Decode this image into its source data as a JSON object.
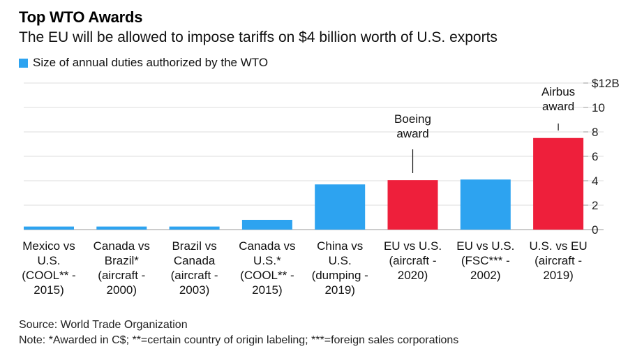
{
  "header": {
    "title": "Top WTO Awards",
    "subtitle": "The EU will be allowed to impose tariffs on $4 billion worth of U.S. exports"
  },
  "legend": {
    "label": "Size of annual duties authorized by the WTO",
    "color": "#2da3f0"
  },
  "footer": {
    "source": "Source: World Trade Organization",
    "note": "Note: *Awarded in C$; **=certain country of origin labeling; ***=foreign sales corporations"
  },
  "chart_data": {
    "type": "bar",
    "categories": [
      [
        "Mexico vs",
        "U.S.",
        "(COOL** -",
        "2015)"
      ],
      [
        "Canada vs",
        "Brazil*",
        "(aircraft -",
        "2000)"
      ],
      [
        "Brazil vs",
        "Canada",
        "(aircraft -",
        "2003)"
      ],
      [
        "Canada vs",
        "U.S.*",
        "(COOL** -",
        "2015)"
      ],
      [
        "China vs",
        "U.S.",
        "(dumping -",
        "2019)"
      ],
      [
        "EU vs U.S.",
        "(aircraft -",
        "2020)"
      ],
      [
        "EU vs U.S.",
        "(FSC*** -",
        "2002)"
      ],
      [
        "U.S. vs EU",
        "(aircraft -",
        "2019)"
      ]
    ],
    "values": [
      0.25,
      0.25,
      0.25,
      0.8,
      3.7,
      4.05,
      4.1,
      7.5
    ],
    "bar_colors": [
      "#2da3f0",
      "#2da3f0",
      "#2da3f0",
      "#2da3f0",
      "#2da3f0",
      "#ee1f3b",
      "#2da3f0",
      "#ee1f3b"
    ],
    "ylim": [
      0,
      12
    ],
    "yticks": [
      0,
      2,
      4,
      6,
      8,
      10,
      12
    ],
    "ytick_labels": [
      "0",
      "2",
      "4",
      "6",
      "8",
      "10",
      "$12B"
    ],
    "y_axis_side": "right",
    "grid": true,
    "annotations": [
      {
        "lines": [
          "Boeing",
          "award"
        ],
        "bar_index": 5
      },
      {
        "lines": [
          "Airbus",
          "award"
        ],
        "bar_index": 7
      }
    ]
  }
}
